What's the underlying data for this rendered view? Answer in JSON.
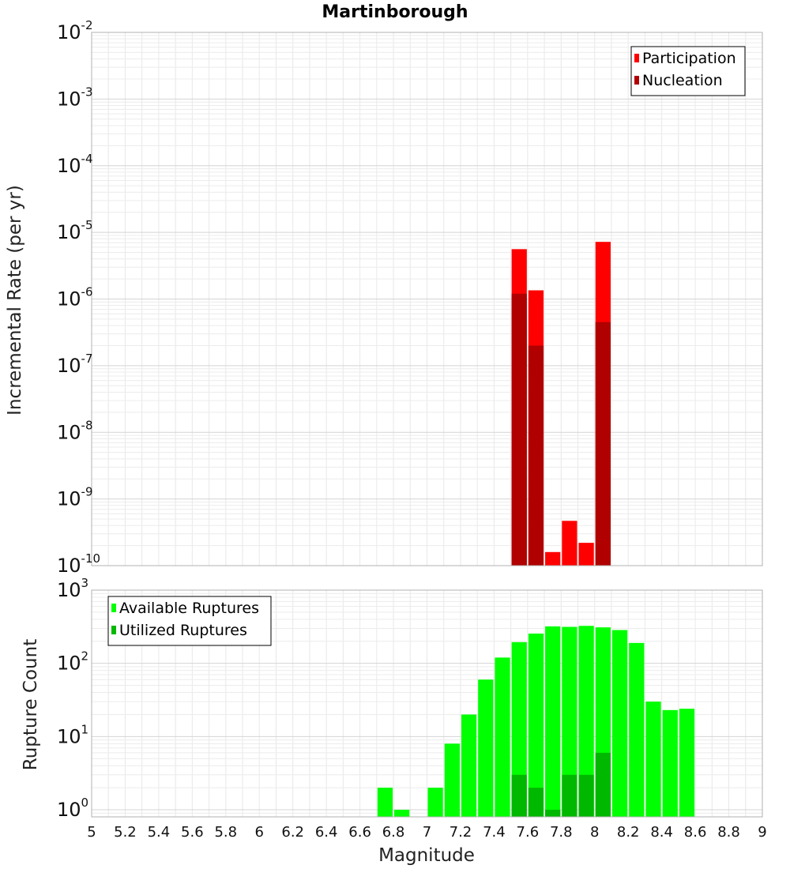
{
  "chart_data": [
    {
      "type": "bar",
      "title": "Martinborough",
      "xlabel": "",
      "ylabel": "Incremental Rate (per yr)",
      "yscale": "log",
      "xlim": [
        5,
        9
      ],
      "ylim": [
        1e-10,
        0.01
      ],
      "y_ticks": [
        {
          "base": "10",
          "exp": "-10"
        },
        {
          "base": "10",
          "exp": "-9"
        },
        {
          "base": "10",
          "exp": "-8"
        },
        {
          "base": "10",
          "exp": "-7"
        },
        {
          "base": "10",
          "exp": "-6"
        },
        {
          "base": "10",
          "exp": "-5"
        },
        {
          "base": "10",
          "exp": "-4"
        },
        {
          "base": "10",
          "exp": "-3"
        },
        {
          "base": "10",
          "exp": "-2"
        }
      ],
      "grid": true,
      "legend_position": "top-right",
      "bin_width": 0.1,
      "series": [
        {
          "name": "Participation",
          "color": "#ff0000",
          "x": [
            7.55,
            7.65,
            7.75,
            7.85,
            7.95,
            8.05
          ],
          "values": [
            5.6e-06,
            1.35e-06,
            1.6e-10,
            4.7e-10,
            2.2e-10,
            7.2e-06
          ]
        },
        {
          "name": "Nucleation",
          "color": "#b00000",
          "x": [
            7.55,
            7.65,
            8.05
          ],
          "values": [
            1.2e-06,
            2e-07,
            4.5e-07
          ]
        }
      ]
    },
    {
      "type": "bar",
      "title": "",
      "xlabel": "Magnitude",
      "ylabel": "Rupture Count",
      "yscale": "log",
      "xlim": [
        5,
        9
      ],
      "ylim": [
        0.8,
        1000
      ],
      "y_ticks": [
        {
          "base": "10",
          "exp": "0"
        },
        {
          "base": "10",
          "exp": "1"
        },
        {
          "base": "10",
          "exp": "2"
        },
        {
          "base": "10",
          "exp": "3"
        }
      ],
      "x_ticks": [
        "5",
        "5.2",
        "5.4",
        "5.6",
        "5.8",
        "6",
        "6.2",
        "6.4",
        "6.6",
        "6.8",
        "7",
        "7.2",
        "7.4",
        "7.6",
        "7.8",
        "8",
        "8.2",
        "8.4",
        "8.6",
        "8.8",
        "9"
      ],
      "grid": true,
      "legend_position": "top-left",
      "bin_width": 0.1,
      "series": [
        {
          "name": "Available Ruptures",
          "color": "#00ff00",
          "x": [
            6.75,
            6.85,
            7.05,
            7.15,
            7.25,
            7.35,
            7.45,
            7.55,
            7.65,
            7.75,
            7.85,
            7.95,
            8.05,
            8.15,
            8.25,
            8.35,
            8.45,
            8.55
          ],
          "values": [
            2,
            1,
            2,
            8,
            20,
            60,
            120,
            195,
            255,
            320,
            315,
            325,
            310,
            285,
            190,
            30,
            23,
            24
          ]
        },
        {
          "name": "Utilized Ruptures",
          "color": "#00b800",
          "x": [
            7.55,
            7.65,
            7.75,
            7.85,
            7.95,
            8.05
          ],
          "values": [
            3,
            2,
            1,
            3,
            3,
            6
          ]
        }
      ]
    }
  ]
}
